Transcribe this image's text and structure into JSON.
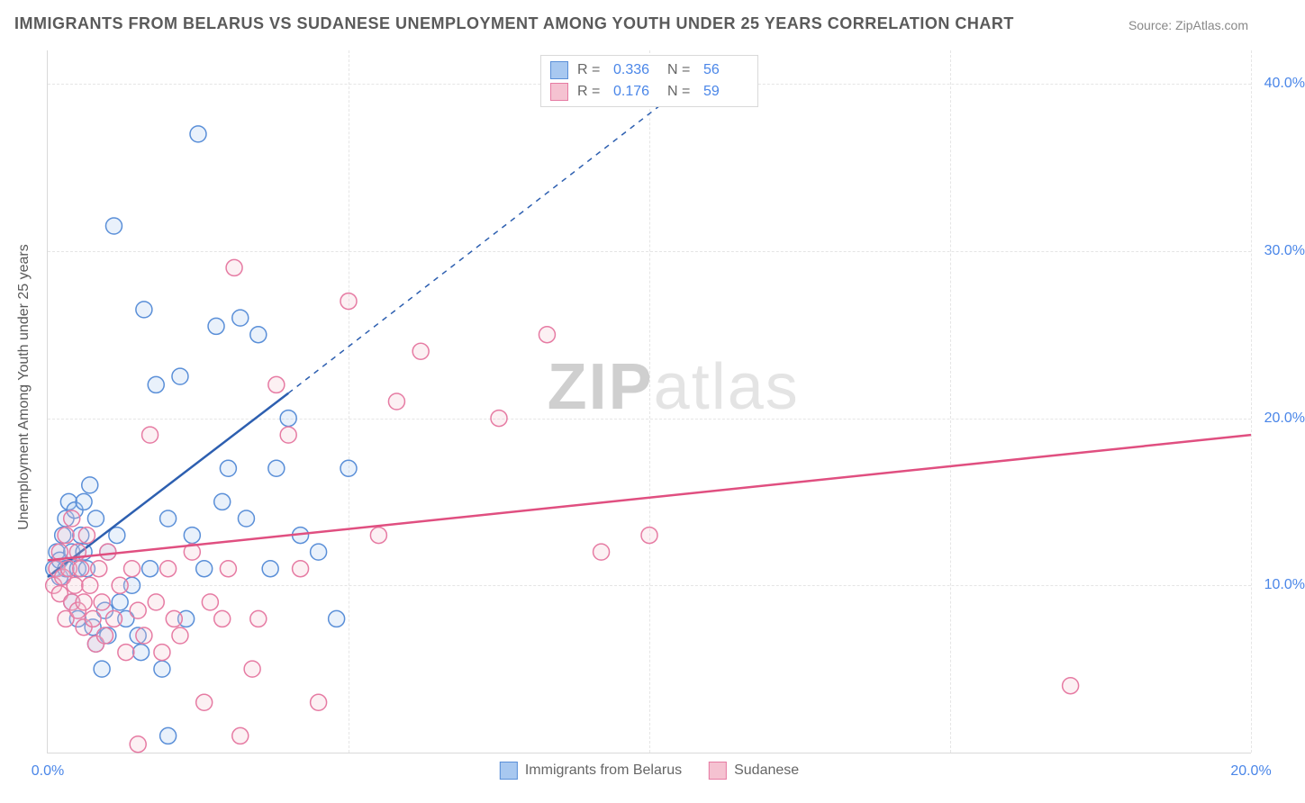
{
  "title": "IMMIGRANTS FROM BELARUS VS SUDANESE UNEMPLOYMENT AMONG YOUTH UNDER 25 YEARS CORRELATION CHART",
  "source": "Source: ZipAtlas.com",
  "y_axis_label": "Unemployment Among Youth under 25 years",
  "watermark_zip": "ZIP",
  "watermark_atlas": "atlas",
  "chart": {
    "type": "scatter",
    "background_color": "#ffffff",
    "grid_color": "#e5e5e5",
    "axis_color": "#d9d9d9",
    "tick_label_color": "#4a86e8",
    "tick_fontsize": 16,
    "title_fontsize": 18,
    "title_color": "#5a5a5a",
    "xlim": [
      0,
      20
    ],
    "ylim": [
      0,
      42
    ],
    "y_ticks": [
      10,
      20,
      30,
      40
    ],
    "y_tick_labels": [
      "10.0%",
      "20.0%",
      "30.0%",
      "40.0%"
    ],
    "x_ticks": [
      0,
      20
    ],
    "x_tick_labels": [
      "0.0%",
      "20.0%"
    ],
    "x_grid_positions": [
      5,
      10,
      15,
      20
    ],
    "marker_radius": 9,
    "marker_fill_opacity": 0.25,
    "marker_stroke_width": 1.5,
    "trend_line_width": 2.5,
    "dashed_pattern": "6,6"
  },
  "legend_top": {
    "r_label": "R =",
    "n_label": "N =",
    "rows": [
      {
        "swatch_fill": "#a8c8f0",
        "swatch_stroke": "#5a8fd8",
        "r": "0.336",
        "n": "56"
      },
      {
        "swatch_fill": "#f5c2d1",
        "swatch_stroke": "#e67ba3",
        "r": "0.176",
        "n": "59"
      }
    ]
  },
  "legend_bottom": {
    "items": [
      {
        "swatch_fill": "#a8c8f0",
        "swatch_stroke": "#5a8fd8",
        "label": "Immigrants from Belarus"
      },
      {
        "swatch_fill": "#f5c2d1",
        "swatch_stroke": "#e67ba3",
        "label": "Sudanese"
      }
    ]
  },
  "series": [
    {
      "name": "Immigrants from Belarus",
      "color_fill": "#a8c8f0",
      "color_stroke": "#5a8fd8",
      "trend_color": "#2d5fb0",
      "trend_solid": {
        "x1": 0,
        "y1": 10.5,
        "x2": 4,
        "y2": 21.5
      },
      "trend_dashed": {
        "x1": 4,
        "y1": 21.5,
        "x2": 11,
        "y2": 41
      },
      "points": [
        [
          0.1,
          11
        ],
        [
          0.15,
          12
        ],
        [
          0.2,
          10.5
        ],
        [
          0.2,
          11.5
        ],
        [
          0.25,
          13
        ],
        [
          0.3,
          14
        ],
        [
          0.3,
          11
        ],
        [
          0.35,
          15
        ],
        [
          0.4,
          12
        ],
        [
          0.4,
          9
        ],
        [
          0.45,
          14.5
        ],
        [
          0.5,
          11
        ],
        [
          0.5,
          8
        ],
        [
          0.55,
          13
        ],
        [
          0.6,
          12
        ],
        [
          0.6,
          15
        ],
        [
          0.65,
          11
        ],
        [
          0.7,
          16
        ],
        [
          0.75,
          7.5
        ],
        [
          0.8,
          14
        ],
        [
          0.8,
          6.5
        ],
        [
          0.9,
          5
        ],
        [
          0.95,
          8.5
        ],
        [
          1.0,
          12
        ],
        [
          1.0,
          7
        ],
        [
          1.1,
          31.5
        ],
        [
          1.15,
          13
        ],
        [
          1.2,
          9
        ],
        [
          1.3,
          8
        ],
        [
          1.4,
          10
        ],
        [
          1.5,
          7
        ],
        [
          1.55,
          6
        ],
        [
          1.6,
          26.5
        ],
        [
          1.7,
          11
        ],
        [
          1.8,
          22
        ],
        [
          1.9,
          5
        ],
        [
          2.0,
          14
        ],
        [
          2.0,
          1
        ],
        [
          2.2,
          22.5
        ],
        [
          2.3,
          8
        ],
        [
          2.4,
          13
        ],
        [
          2.5,
          37
        ],
        [
          2.6,
          11
        ],
        [
          2.8,
          25.5
        ],
        [
          2.9,
          15
        ],
        [
          3.0,
          17
        ],
        [
          3.2,
          26
        ],
        [
          3.3,
          14
        ],
        [
          3.5,
          25
        ],
        [
          3.7,
          11
        ],
        [
          3.8,
          17
        ],
        [
          4.0,
          20
        ],
        [
          4.2,
          13
        ],
        [
          4.5,
          12
        ],
        [
          4.8,
          8
        ],
        [
          5.0,
          17
        ]
      ]
    },
    {
      "name": "Sudanese",
      "color_fill": "#f5c2d1",
      "color_stroke": "#e67ba3",
      "trend_color": "#e04f80",
      "trend_solid": {
        "x1": 0,
        "y1": 11.5,
        "x2": 20,
        "y2": 19
      },
      "points": [
        [
          0.1,
          10
        ],
        [
          0.15,
          11
        ],
        [
          0.2,
          9.5
        ],
        [
          0.2,
          12
        ],
        [
          0.25,
          10.5
        ],
        [
          0.3,
          8
        ],
        [
          0.3,
          13
        ],
        [
          0.35,
          11
        ],
        [
          0.4,
          9
        ],
        [
          0.4,
          14
        ],
        [
          0.45,
          10
        ],
        [
          0.5,
          8.5
        ],
        [
          0.5,
          12
        ],
        [
          0.55,
          11
        ],
        [
          0.6,
          9
        ],
        [
          0.6,
          7.5
        ],
        [
          0.65,
          13
        ],
        [
          0.7,
          10
        ],
        [
          0.75,
          8
        ],
        [
          0.8,
          6.5
        ],
        [
          0.85,
          11
        ],
        [
          0.9,
          9
        ],
        [
          0.95,
          7
        ],
        [
          1.0,
          12
        ],
        [
          1.1,
          8
        ],
        [
          1.2,
          10
        ],
        [
          1.3,
          6
        ],
        [
          1.4,
          11
        ],
        [
          1.5,
          8.5
        ],
        [
          1.6,
          7
        ],
        [
          1.7,
          19
        ],
        [
          1.8,
          9
        ],
        [
          1.9,
          6
        ],
        [
          2.0,
          11
        ],
        [
          2.1,
          8
        ],
        [
          2.2,
          7
        ],
        [
          2.4,
          12
        ],
        [
          2.6,
          3
        ],
        [
          2.7,
          9
        ],
        [
          2.9,
          8
        ],
        [
          3.0,
          11
        ],
        [
          3.1,
          29
        ],
        [
          3.2,
          1
        ],
        [
          3.4,
          5
        ],
        [
          3.5,
          8
        ],
        [
          3.8,
          22
        ],
        [
          4.0,
          19
        ],
        [
          4.2,
          11
        ],
        [
          4.5,
          3
        ],
        [
          5.0,
          27
        ],
        [
          5.5,
          13
        ],
        [
          5.8,
          21
        ],
        [
          6.2,
          24
        ],
        [
          7.5,
          20
        ],
        [
          8.3,
          25
        ],
        [
          9.2,
          12
        ],
        [
          10.0,
          13
        ],
        [
          17.0,
          4
        ],
        [
          1.5,
          0.5
        ]
      ]
    }
  ]
}
